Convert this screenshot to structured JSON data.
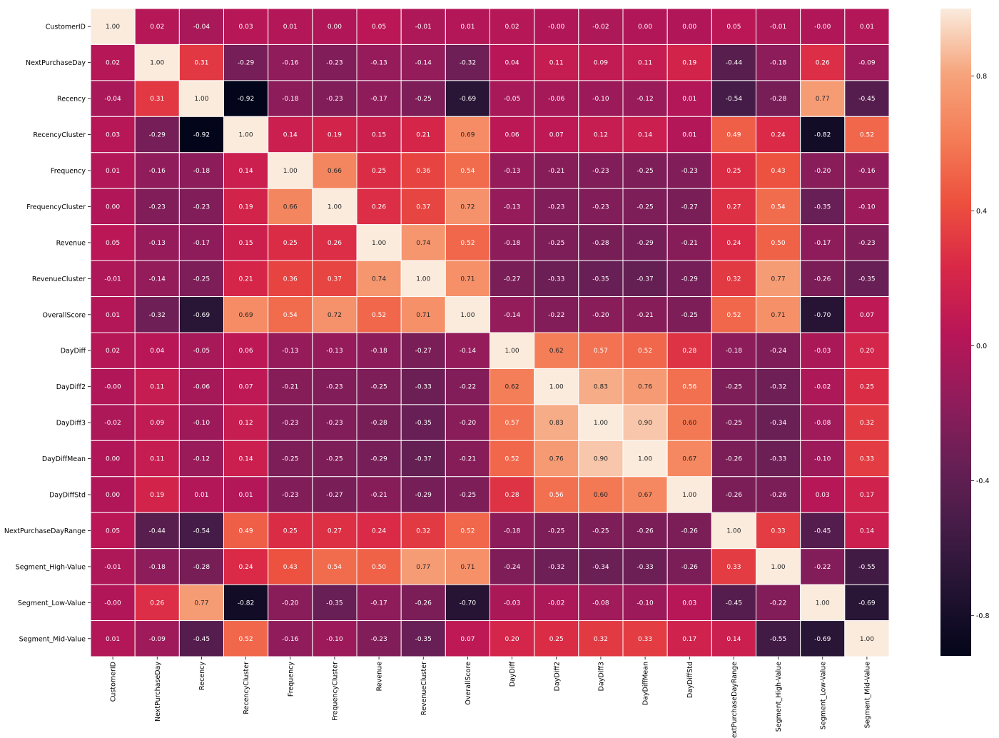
{
  "chart_data": {
    "type": "heatmap",
    "title": "",
    "xlabel": "",
    "ylabel": "",
    "labels": [
      "CustomerID",
      "NextPurchaseDay",
      "Recency",
      "RecencyCluster",
      "Frequency",
      "FrequencyCluster",
      "Revenue",
      "RevenueCluster",
      "OverallScore",
      "DayDiff",
      "DayDiff2",
      "DayDiff3",
      "DayDiffMean",
      "DayDiffStd",
      "NextPurchaseDayRange",
      "Segment_High-Value",
      "Segment_Low-Value",
      "Segment_Mid-Value"
    ],
    "values": [
      [
        "1.00",
        "0.02",
        "-0.04",
        "0.03",
        "0.01",
        "0.00",
        "0.05",
        "-0.01",
        "0.01",
        "0.02",
        "-0.00",
        "-0.02",
        "0.00",
        "0.00",
        "0.05",
        "-0.01",
        "-0.00",
        "0.01"
      ],
      [
        "0.02",
        "1.00",
        "0.31",
        "-0.29",
        "-0.16",
        "-0.23",
        "-0.13",
        "-0.14",
        "-0.32",
        "0.04",
        "0.11",
        "0.09",
        "0.11",
        "0.19",
        "-0.44",
        "-0.18",
        "0.26",
        "-0.09"
      ],
      [
        "-0.04",
        "0.31",
        "1.00",
        "-0.92",
        "-0.18",
        "-0.23",
        "-0.17",
        "-0.25",
        "-0.69",
        "-0.05",
        "-0.06",
        "-0.10",
        "-0.12",
        "0.01",
        "-0.54",
        "-0.28",
        "0.77",
        "-0.45"
      ],
      [
        "0.03",
        "-0.29",
        "-0.92",
        "1.00",
        "0.14",
        "0.19",
        "0.15",
        "0.21",
        "0.69",
        "0.06",
        "0.07",
        "0.12",
        "0.14",
        "0.01",
        "0.49",
        "0.24",
        "-0.82",
        "0.52"
      ],
      [
        "0.01",
        "-0.16",
        "-0.18",
        "0.14",
        "1.00",
        "0.66",
        "0.25",
        "0.36",
        "0.54",
        "-0.13",
        "-0.21",
        "-0.23",
        "-0.25",
        "-0.23",
        "0.25",
        "0.43",
        "-0.20",
        "-0.16"
      ],
      [
        "0.00",
        "-0.23",
        "-0.23",
        "0.19",
        "0.66",
        "1.00",
        "0.26",
        "0.37",
        "0.72",
        "-0.13",
        "-0.23",
        "-0.23",
        "-0.25",
        "-0.27",
        "0.27",
        "0.54",
        "-0.35",
        "-0.10"
      ],
      [
        "0.05",
        "-0.13",
        "-0.17",
        "0.15",
        "0.25",
        "0.26",
        "1.00",
        "0.74",
        "0.52",
        "-0.18",
        "-0.25",
        "-0.28",
        "-0.29",
        "-0.21",
        "0.24",
        "0.50",
        "-0.17",
        "-0.23"
      ],
      [
        "-0.01",
        "-0.14",
        "-0.25",
        "0.21",
        "0.36",
        "0.37",
        "0.74",
        "1.00",
        "0.71",
        "-0.27",
        "-0.33",
        "-0.35",
        "-0.37",
        "-0.29",
        "0.32",
        "0.77",
        "-0.26",
        "-0.35"
      ],
      [
        "0.01",
        "-0.32",
        "-0.69",
        "0.69",
        "0.54",
        "0.72",
        "0.52",
        "0.71",
        "1.00",
        "-0.14",
        "-0.22",
        "-0.20",
        "-0.21",
        "-0.25",
        "0.52",
        "0.71",
        "-0.70",
        "0.07"
      ],
      [
        "0.02",
        "0.04",
        "-0.05",
        "0.06",
        "-0.13",
        "-0.13",
        "-0.18",
        "-0.27",
        "-0.14",
        "1.00",
        "0.62",
        "0.57",
        "0.52",
        "0.28",
        "-0.18",
        "-0.24",
        "-0.03",
        "0.20"
      ],
      [
        "-0.00",
        "0.11",
        "-0.06",
        "0.07",
        "-0.21",
        "-0.23",
        "-0.25",
        "-0.33",
        "-0.22",
        "0.62",
        "1.00",
        "0.83",
        "0.76",
        "0.56",
        "-0.25",
        "-0.32",
        "-0.02",
        "0.25"
      ],
      [
        "-0.02",
        "0.09",
        "-0.10",
        "0.12",
        "-0.23",
        "-0.23",
        "-0.28",
        "-0.35",
        "-0.20",
        "0.57",
        "0.83",
        "1.00",
        "0.90",
        "0.60",
        "-0.25",
        "-0.34",
        "-0.08",
        "0.32"
      ],
      [
        "0.00",
        "0.11",
        "-0.12",
        "0.14",
        "-0.25",
        "-0.25",
        "-0.29",
        "-0.37",
        "-0.21",
        "0.52",
        "0.76",
        "0.90",
        "1.00",
        "0.67",
        "-0.26",
        "-0.33",
        "-0.10",
        "0.33"
      ],
      [
        "0.00",
        "0.19",
        "0.01",
        "0.01",
        "-0.23",
        "-0.27",
        "-0.21",
        "-0.29",
        "-0.25",
        "0.28",
        "0.56",
        "0.60",
        "0.67",
        "1.00",
        "-0.26",
        "-0.26",
        "0.03",
        "0.17"
      ],
      [
        "0.05",
        "-0.44",
        "-0.54",
        "0.49",
        "0.25",
        "0.27",
        "0.24",
        "0.32",
        "0.52",
        "-0.18",
        "-0.25",
        "-0.25",
        "-0.26",
        "-0.26",
        "1.00",
        "0.33",
        "-0.45",
        "0.14"
      ],
      [
        "-0.01",
        "-0.18",
        "-0.28",
        "0.24",
        "0.43",
        "0.54",
        "0.50",
        "0.77",
        "0.71",
        "-0.24",
        "-0.32",
        "-0.34",
        "-0.33",
        "-0.26",
        "0.33",
        "1.00",
        "-0.22",
        "-0.55"
      ],
      [
        "-0.00",
        "0.26",
        "0.77",
        "-0.82",
        "-0.20",
        "-0.35",
        "-0.17",
        "-0.26",
        "-0.70",
        "-0.03",
        "-0.02",
        "-0.08",
        "-0.10",
        "0.03",
        "-0.45",
        "-0.22",
        "1.00",
        "-0.69"
      ],
      [
        "0.01",
        "-0.09",
        "-0.45",
        "0.52",
        "-0.16",
        "-0.10",
        "-0.23",
        "-0.35",
        "0.07",
        "0.20",
        "0.25",
        "0.32",
        "0.33",
        "0.17",
        "0.14",
        "-0.55",
        "-0.69",
        "1.00"
      ]
    ],
    "vmin": -0.92,
    "vmax": 1.0,
    "colormap": "rocket",
    "colorbar_ticks": [
      "0.8",
      "0.4",
      "0.0",
      "-0.4",
      "-0.8"
    ],
    "gridlines": "white",
    "annotations": true
  }
}
